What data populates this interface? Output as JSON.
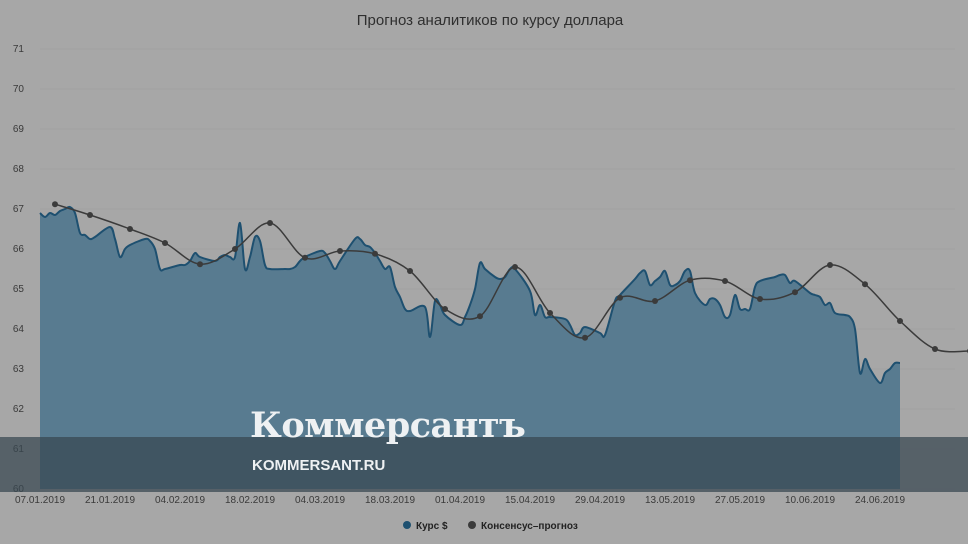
{
  "chart_data": {
    "type": "area",
    "title": "Прогноз аналитиков по курсу доллара",
    "xlabel": "",
    "ylabel": "",
    "ylim": [
      60,
      71
    ],
    "y_ticks": [
      60,
      61,
      62,
      63,
      64,
      65,
      66,
      67,
      68,
      69,
      70,
      71
    ],
    "x_tick_labels": [
      "07.01.2019",
      "21.01.2019",
      "04.02.2019",
      "18.02.2019",
      "04.03.2019",
      "18.03.2019",
      "01.04.2019",
      "15.04.2019",
      "29.04.2019",
      "13.05.2019",
      "27.05.2019",
      "10.06.2019",
      "24.06.2019"
    ],
    "x_start": "2019-01-07",
    "x_end": "2019-07-09",
    "grid": true,
    "legend_position": "bottom",
    "series": [
      {
        "name": "Курс $",
        "kind": "area",
        "color": "#1e5070",
        "fill": "#587b90",
        "points": [
          [
            "2019-01-07",
            66.9
          ],
          [
            "2019-01-08",
            66.8
          ],
          [
            "2019-01-09",
            66.9
          ],
          [
            "2019-01-10",
            66.85
          ],
          [
            "2019-01-11",
            66.95
          ],
          [
            "2019-01-12",
            67.0
          ],
          [
            "2019-01-13",
            67.05
          ],
          [
            "2019-01-14",
            66.9
          ],
          [
            "2019-01-15",
            66.4
          ],
          [
            "2019-01-16",
            66.35
          ],
          [
            "2019-01-17",
            66.25
          ],
          [
            "2019-01-18",
            66.3
          ],
          [
            "2019-01-21",
            66.55
          ],
          [
            "2019-01-22",
            66.25
          ],
          [
            "2019-01-23",
            65.8
          ],
          [
            "2019-01-24",
            66.0
          ],
          [
            "2019-01-25",
            66.1
          ],
          [
            "2019-01-28",
            66.25
          ],
          [
            "2019-01-29",
            66.2
          ],
          [
            "2019-01-30",
            66.0
          ],
          [
            "2019-01-31",
            65.5
          ],
          [
            "2019-02-01",
            65.5
          ],
          [
            "2019-02-04",
            65.6
          ],
          [
            "2019-02-05",
            65.6
          ],
          [
            "2019-02-06",
            65.7
          ],
          [
            "2019-02-07",
            65.9
          ],
          [
            "2019-02-08",
            65.8
          ],
          [
            "2019-02-11",
            65.7
          ],
          [
            "2019-02-12",
            65.8
          ],
          [
            "2019-02-13",
            65.85
          ],
          [
            "2019-02-14",
            65.8
          ],
          [
            "2019-02-15",
            65.8
          ],
          [
            "2019-02-16",
            66.65
          ],
          [
            "2019-02-17",
            65.5
          ],
          [
            "2019-02-18",
            65.8
          ],
          [
            "2019-02-19",
            66.3
          ],
          [
            "2019-02-20",
            66.2
          ],
          [
            "2019-02-21",
            65.6
          ],
          [
            "2019-02-22",
            65.5
          ],
          [
            "2019-02-25",
            65.5
          ],
          [
            "2019-02-26",
            65.5
          ],
          [
            "2019-02-27",
            65.55
          ],
          [
            "2019-02-28",
            65.7
          ],
          [
            "2019-03-01",
            65.8
          ],
          [
            "2019-03-04",
            65.95
          ],
          [
            "2019-03-05",
            65.9
          ],
          [
            "2019-03-06",
            65.7
          ],
          [
            "2019-03-07",
            65.5
          ],
          [
            "2019-03-08",
            65.7
          ],
          [
            "2019-03-11",
            66.25
          ],
          [
            "2019-03-12",
            66.25
          ],
          [
            "2019-03-13",
            66.1
          ],
          [
            "2019-03-14",
            66.05
          ],
          [
            "2019-03-15",
            65.9
          ],
          [
            "2019-03-16",
            65.7
          ],
          [
            "2019-03-17",
            65.5
          ],
          [
            "2019-03-18",
            65.55
          ],
          [
            "2019-03-19",
            65.05
          ],
          [
            "2019-03-20",
            64.8
          ],
          [
            "2019-03-21",
            64.5
          ],
          [
            "2019-03-22",
            64.45
          ],
          [
            "2019-03-25",
            64.55
          ],
          [
            "2019-03-26",
            63.8
          ],
          [
            "2019-03-27",
            64.7
          ],
          [
            "2019-03-28",
            64.6
          ],
          [
            "2019-03-29",
            64.35
          ],
          [
            "2019-04-01",
            64.1
          ],
          [
            "2019-04-02",
            64.3
          ],
          [
            "2019-04-03",
            64.6
          ],
          [
            "2019-04-04",
            65.0
          ],
          [
            "2019-04-05",
            65.65
          ],
          [
            "2019-04-06",
            65.5
          ],
          [
            "2019-04-08",
            65.3
          ],
          [
            "2019-04-09",
            65.25
          ],
          [
            "2019-04-10",
            65.3
          ],
          [
            "2019-04-11",
            65.5
          ],
          [
            "2019-04-12",
            65.5
          ],
          [
            "2019-04-15",
            64.95
          ],
          [
            "2019-04-16",
            64.35
          ],
          [
            "2019-04-17",
            64.6
          ],
          [
            "2019-04-18",
            64.3
          ],
          [
            "2019-04-19",
            64.3
          ],
          [
            "2019-04-22",
            64.25
          ],
          [
            "2019-04-23",
            64.1
          ],
          [
            "2019-04-24",
            63.85
          ],
          [
            "2019-04-25",
            63.9
          ],
          [
            "2019-04-26",
            64.05
          ],
          [
            "2019-04-29",
            63.9
          ],
          [
            "2019-04-30",
            63.85
          ],
          [
            "2019-05-02",
            64.7
          ],
          [
            "2019-05-03",
            64.85
          ],
          [
            "2019-05-06",
            65.25
          ],
          [
            "2019-05-07",
            65.4
          ],
          [
            "2019-05-08",
            65.45
          ],
          [
            "2019-05-09",
            65.1
          ],
          [
            "2019-05-10",
            65.2
          ],
          [
            "2019-05-11",
            65.3
          ],
          [
            "2019-05-12",
            65.45
          ],
          [
            "2019-05-13",
            65.1
          ],
          [
            "2019-05-14",
            65.1
          ],
          [
            "2019-05-15",
            65.2
          ],
          [
            "2019-05-16",
            65.45
          ],
          [
            "2019-05-17",
            65.45
          ],
          [
            "2019-05-18",
            64.9
          ],
          [
            "2019-05-20",
            64.6
          ],
          [
            "2019-05-21",
            64.75
          ],
          [
            "2019-05-22",
            64.75
          ],
          [
            "2019-05-23",
            64.6
          ],
          [
            "2019-05-24",
            64.3
          ],
          [
            "2019-05-25",
            64.35
          ],
          [
            "2019-05-26",
            64.85
          ],
          [
            "2019-05-27",
            64.5
          ],
          [
            "2019-05-28",
            64.5
          ],
          [
            "2019-05-29",
            64.5
          ],
          [
            "2019-05-30",
            65.05
          ],
          [
            "2019-05-31",
            65.2
          ],
          [
            "2019-06-03",
            65.3
          ],
          [
            "2019-06-04",
            65.35
          ],
          [
            "2019-06-05",
            65.35
          ],
          [
            "2019-06-06",
            65.15
          ],
          [
            "2019-06-07",
            65.2
          ],
          [
            "2019-06-10",
            64.9
          ],
          [
            "2019-06-11",
            64.85
          ],
          [
            "2019-06-12",
            64.8
          ],
          [
            "2019-06-13",
            64.6
          ],
          [
            "2019-06-14",
            64.65
          ],
          [
            "2019-06-15",
            64.4
          ],
          [
            "2019-06-17",
            64.35
          ],
          [
            "2019-06-18",
            64.3
          ],
          [
            "2019-06-19",
            64.0
          ],
          [
            "2019-06-20",
            62.9
          ],
          [
            "2019-06-21",
            63.25
          ],
          [
            "2019-06-22",
            63.0
          ],
          [
            "2019-06-24",
            62.65
          ],
          [
            "2019-06-25",
            62.9
          ],
          [
            "2019-06-26",
            63.0
          ],
          [
            "2019-06-27",
            63.15
          ],
          [
            "2019-06-28",
            63.15
          ]
        ]
      },
      {
        "name": "Консенсус–прогноз",
        "kind": "line",
        "color": "#3b3b3b",
        "points": [
          [
            "2019-01-10",
            67.12
          ],
          [
            "2019-01-17",
            66.85
          ],
          [
            "2019-01-25",
            66.5
          ],
          [
            "2019-02-01",
            66.15
          ],
          [
            "2019-02-08",
            65.62
          ],
          [
            "2019-02-15",
            66.0
          ],
          [
            "2019-02-22",
            66.65
          ],
          [
            "2019-03-01",
            65.78
          ],
          [
            "2019-03-08",
            65.95
          ],
          [
            "2019-03-15",
            65.88
          ],
          [
            "2019-03-22",
            65.45
          ],
          [
            "2019-03-29",
            64.5
          ],
          [
            "2019-04-05",
            64.32
          ],
          [
            "2019-04-12",
            65.55
          ],
          [
            "2019-04-19",
            64.4
          ],
          [
            "2019-04-26",
            63.78
          ],
          [
            "2019-05-03",
            64.78
          ],
          [
            "2019-05-10",
            64.7
          ],
          [
            "2019-05-17",
            65.22
          ],
          [
            "2019-05-24",
            65.2
          ],
          [
            "2019-05-31",
            64.75
          ],
          [
            "2019-06-07",
            64.92
          ],
          [
            "2019-06-14",
            65.6
          ],
          [
            "2019-06-21",
            65.12
          ],
          [
            "2019-06-28",
            64.2
          ],
          [
            "2019-07-05",
            63.5
          ],
          [
            "2019-07-12",
            63.45
          ]
        ]
      }
    ]
  },
  "watermark": {
    "brand": "Коммерсантъ",
    "url": "KOMMERSANT.RU"
  },
  "colors": {
    "background": "#a7a7a7",
    "area_fill": "#587b90",
    "area_line": "#1e5070",
    "forecast_line": "#3b3b3b",
    "grid": "#999999"
  }
}
